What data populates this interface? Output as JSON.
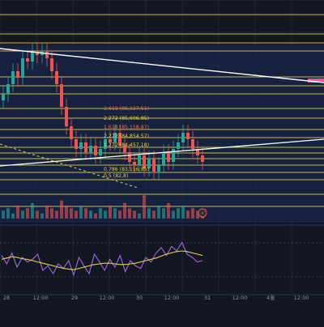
{
  "chart_data": [
    {
      "type": "candlestick",
      "panel": "price",
      "grid": true,
      "fib_labels": [
        {
          "ratio": "2.618",
          "price": "86,127.51",
          "color": "#e8734a"
        },
        {
          "ratio": "2.272",
          "price": "85,696.85",
          "color": "#e8d44a"
        },
        {
          "ratio": "1.618",
          "price": "85,158.87",
          "color": "#e8734a"
        },
        {
          "ratio": "2.272",
          "price": "84,854.57",
          "color": "#e8d44a"
        },
        {
          "ratio": "1.272",
          "price": "84,457.18",
          "color": "#e8d44a"
        },
        {
          "ratio": "0.786",
          "price": "83,156.85",
          "color": "#e8d44a"
        },
        {
          "ratio": "0.5",
          "price": "82,8",
          "color": "#e8d44a"
        }
      ],
      "close_series": [
        84.6,
        84.9,
        85.3,
        85.1,
        85.7,
        85.6,
        85.9,
        85.8,
        85.9,
        85.7,
        85.3,
        84.9,
        84.2,
        83.6,
        83.2,
        82.9,
        83.1,
        82.8,
        83.0,
        82.7,
        82.9,
        83.2,
        83.1,
        83.4,
        83.0,
        82.8,
        82.5,
        82.4,
        82.7,
        82.3,
        82.6,
        82.2,
        82.4,
        82.8,
        82.5,
        82.9,
        83.1,
        83.4,
        83.2,
        82.9,
        82.7,
        82.5
      ],
      "volume_series": [
        3,
        4,
        2,
        5,
        3,
        4,
        6,
        3,
        2,
        5,
        4,
        3,
        7,
        5,
        4,
        3,
        5,
        4,
        3,
        2,
        4,
        3,
        5,
        4,
        3,
        6,
        4,
        3,
        2,
        9,
        4,
        3,
        5,
        4,
        6,
        3,
        4,
        5,
        3,
        4,
        3,
        2
      ],
      "marker": "⚡"
    },
    {
      "type": "line",
      "panel": "oscillator",
      "series": [
        {
          "color": "#9c6ade",
          "values": [
            58,
            45,
            62,
            40,
            55,
            48,
            52,
            60,
            35,
            42,
            30,
            45,
            38,
            50,
            28,
            55,
            42,
            30,
            60,
            48,
            35,
            52,
            40,
            58,
            33,
            50,
            42,
            38,
            55,
            48,
            62,
            70,
            58,
            72,
            65,
            78,
            60,
            55,
            48,
            50
          ]
        },
        {
          "color": "#e8d44a",
          "values": [
            52,
            54,
            56,
            55,
            53,
            52,
            50,
            48,
            46,
            44,
            42,
            40,
            38,
            37,
            36,
            38,
            40,
            42,
            44,
            45,
            46,
            46,
            45,
            44,
            44,
            45,
            46,
            48,
            50,
            52,
            54,
            57,
            60,
            62,
            64,
            65,
            64,
            62,
            60,
            58
          ]
        }
      ]
    }
  ],
  "time_axis": {
    "labels": [
      "28",
      "12:00",
      "29",
      "12:00",
      "30",
      "12:00",
      "31",
      "12:00",
      "4월",
      "12:00"
    ]
  },
  "colors": {
    "background": "#131722",
    "up": "#26a69a",
    "down": "#ef5350",
    "hline": "#e8d44a",
    "trend": "#ffffff",
    "highlight": "#ff4d8d"
  }
}
